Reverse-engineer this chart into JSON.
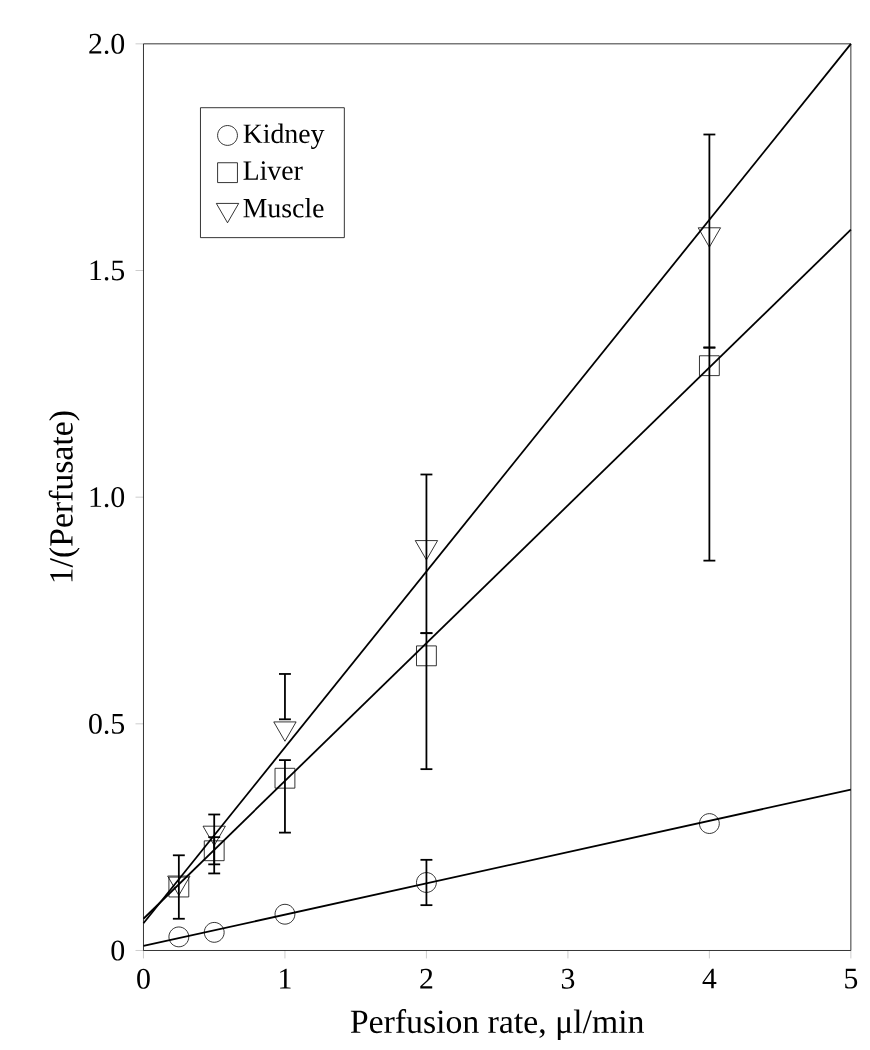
{
  "chart_data": {
    "type": "scatter",
    "xlabel": "Perfusion rate, μl/min",
    "ylabel": "1/(Perfusate)",
    "xlim": [
      0,
      5
    ],
    "ylim": [
      0,
      2.0
    ],
    "xticks": [
      0,
      1,
      2,
      3,
      4,
      5
    ],
    "yticks": [
      0,
      0.5,
      {
        "value": 1,
        "label": "1.0"
      },
      1.5,
      {
        "value": 2,
        "label": "2.0"
      }
    ],
    "legend": "top left",
    "series": [
      {
        "name": "Kidney",
        "marker": "circle",
        "color": "#000000",
        "x": [
          0.25,
          0.5,
          1,
          2,
          4
        ],
        "values": [
          0.03,
          0.04,
          0.08,
          0.15,
          0.28
        ],
        "errors": [
          null,
          null,
          null,
          [
            0.1,
            0.2
          ],
          null
        ]
      },
      {
        "name": "Liver",
        "marker": "square",
        "color": "#000000",
        "x": [
          0.25,
          0.5,
          1,
          2,
          4
        ],
        "values": [
          0.14,
          0.22,
          0.38,
          0.65,
          1.29
        ],
        "errors": [
          [
            0.07,
            0.21
          ],
          [
            0.17,
            0.25
          ],
          [
            0.26,
            0.42
          ],
          [
            0.4,
            0.7
          ],
          [
            0.86,
            1.33
          ]
        ]
      },
      {
        "name": "Muscle",
        "marker": "triangle",
        "color": "#000000",
        "x": [
          0.25,
          0.5,
          1,
          2,
          4
        ],
        "values": [
          0.15,
          0.26,
          0.49,
          0.89,
          1.58
        ],
        "errors": [
          null,
          [
            0.19,
            0.3
          ],
          [
            0.51,
            0.61
          ],
          [
            0.7,
            1.05
          ],
          [
            1.33,
            1.8
          ]
        ]
      },
      {
        "type": "line",
        "marker": "none",
        "color": "#000000",
        "x": [
          0,
          5
        ],
        "values": [
          0.01,
          0.355
        ]
      },
      {
        "type": "line",
        "marker": "none",
        "color": "#000000",
        "x": [
          0,
          5
        ],
        "values": [
          0.07,
          1.59
        ]
      },
      {
        "type": "line",
        "marker": "none",
        "color": "#000000",
        "x": [
          0,
          5
        ],
        "values": [
          0.06,
          2.0
        ]
      }
    ]
  }
}
